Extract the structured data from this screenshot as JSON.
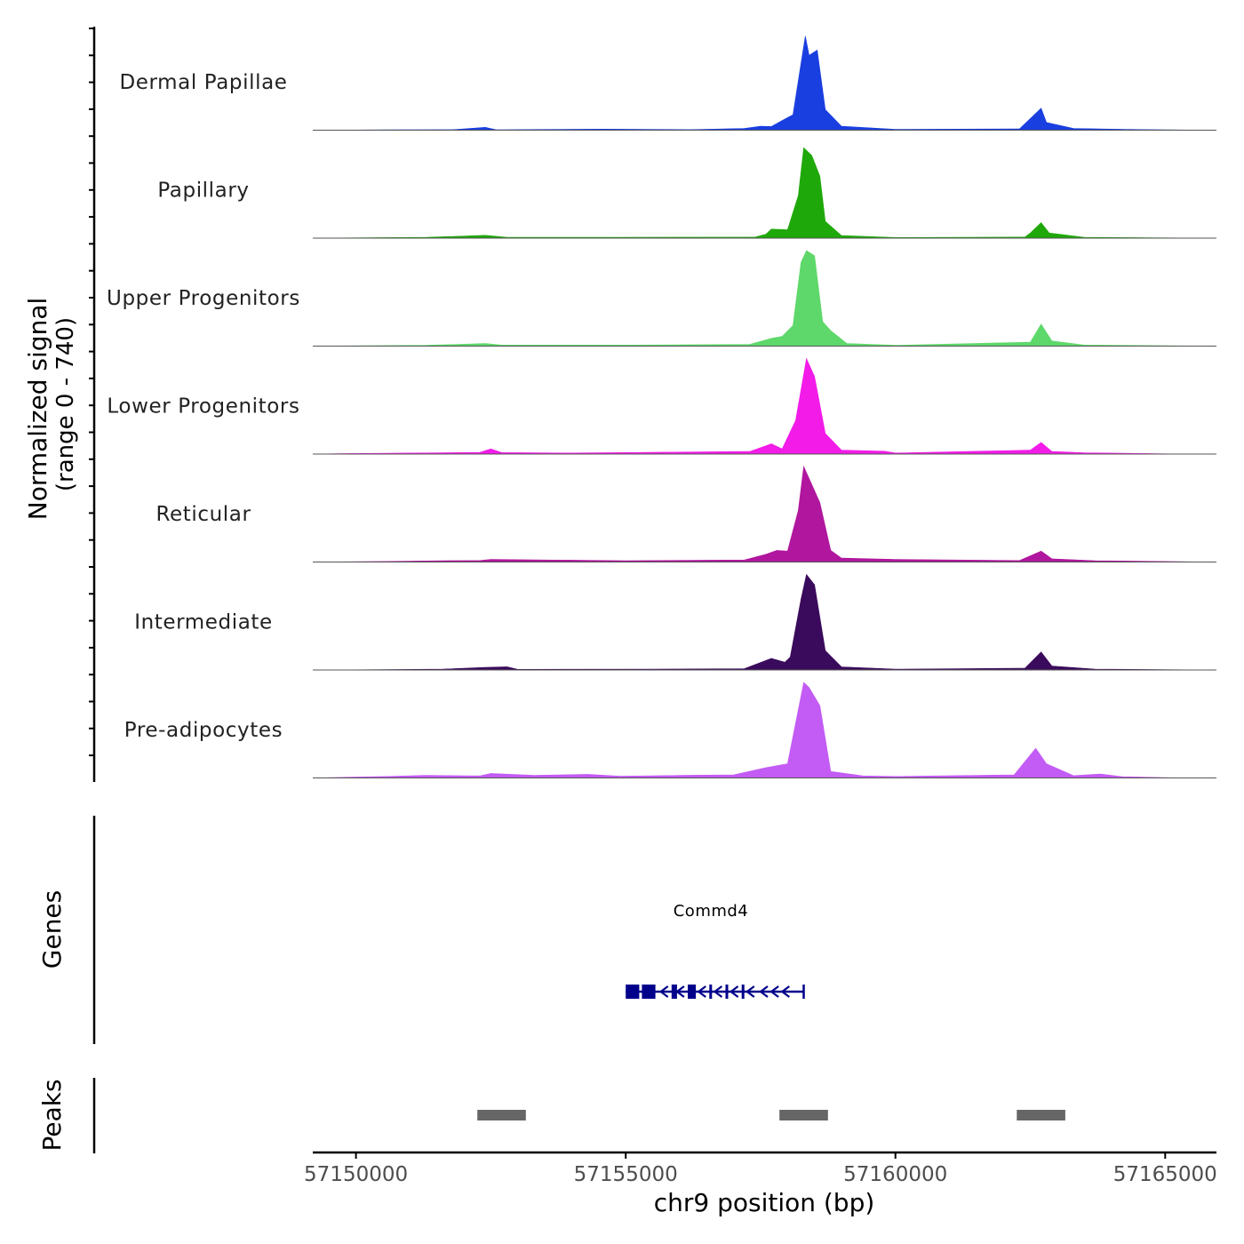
{
  "chart_data": [
    {
      "type": "area",
      "title": "",
      "ylabel_line1": "Normalized signal",
      "ylabel_line2": "(range 0 - 740)",
      "ylim": [
        0,
        740
      ],
      "xlim": [
        57149200,
        57165950
      ],
      "colors": [
        "#1A3FE0",
        "#1FA80A",
        "#5ED86A",
        "#F21BE8",
        "#B0169E",
        "#3A0A5C",
        "#C35BF5"
      ],
      "peak_scale": [
        1.0,
        1.0,
        1.0,
        0.9,
        0.72,
        0.78,
        0.8
      ],
      "shoulder_scale": [
        0.28,
        0.12,
        0.35,
        0.15,
        0.22,
        0.3,
        0.5
      ],
      "series": [
        {
          "name": "Dermal Papillae",
          "values": [
            [
              57149200,
              0
            ],
            [
              57150600,
              3
            ],
            [
              57151800,
              4
            ],
            [
              57152400,
              22
            ],
            [
              57152600,
              3
            ],
            [
              57154600,
              8
            ],
            [
              57156200,
              4
            ],
            [
              57157200,
              14
            ],
            [
              57157500,
              30
            ],
            [
              57157700,
              28
            ],
            [
              57157900,
              75
            ],
            [
              57158100,
              120
            ],
            [
              57158250,
              520
            ],
            [
              57158330,
              730
            ],
            [
              57158400,
              580
            ],
            [
              57158550,
              620
            ],
            [
              57158700,
              160
            ],
            [
              57159000,
              30
            ],
            [
              57160000,
              6
            ],
            [
              57162300,
              10
            ],
            [
              57162700,
              170
            ],
            [
              57162800,
              60
            ],
            [
              57163300,
              14
            ],
            [
              57164500,
              5
            ],
            [
              57165900,
              0
            ]
          ]
        },
        {
          "name": "Papillary",
          "values": [
            [
              57149200,
              0
            ],
            [
              57151300,
              6
            ],
            [
              57152400,
              22
            ],
            [
              57152800,
              6
            ],
            [
              57154600,
              6
            ],
            [
              57157400,
              8
            ],
            [
              57157600,
              30
            ],
            [
              57157700,
              70
            ],
            [
              57158000,
              65
            ],
            [
              57158200,
              330
            ],
            [
              57158300,
              700
            ],
            [
              57158450,
              640
            ],
            [
              57158600,
              480
            ],
            [
              57158700,
              130
            ],
            [
              57159000,
              20
            ],
            [
              57160000,
              5
            ],
            [
              57162400,
              8
            ],
            [
              57162500,
              40
            ],
            [
              57162700,
              120
            ],
            [
              57162850,
              40
            ],
            [
              57163500,
              6
            ],
            [
              57165900,
              0
            ]
          ]
        },
        {
          "name": "Upper Progenitors",
          "values": [
            [
              57149200,
              0
            ],
            [
              57151300,
              6
            ],
            [
              57152400,
              20
            ],
            [
              57152700,
              8
            ],
            [
              57155200,
              8
            ],
            [
              57157300,
              14
            ],
            [
              57157700,
              60
            ],
            [
              57157900,
              75
            ],
            [
              57158100,
              160
            ],
            [
              57158250,
              650
            ],
            [
              57158350,
              740
            ],
            [
              57158500,
              700
            ],
            [
              57158650,
              190
            ],
            [
              57158800,
              120
            ],
            [
              57159100,
              20
            ],
            [
              57160000,
              6
            ],
            [
              57162500,
              30
            ],
            [
              57162700,
              170
            ],
            [
              57162900,
              40
            ],
            [
              57163500,
              8
            ],
            [
              57165900,
              0
            ]
          ]
        },
        {
          "name": "Lower Progenitors",
          "values": [
            [
              57149200,
              0
            ],
            [
              57149900,
              4
            ],
            [
              57151600,
              10
            ],
            [
              57152300,
              14
            ],
            [
              57152500,
              40
            ],
            [
              57152700,
              12
            ],
            [
              57154000,
              8
            ],
            [
              57157300,
              20
            ],
            [
              57157700,
              80
            ],
            [
              57157900,
              40
            ],
            [
              57158150,
              260
            ],
            [
              57158350,
              740
            ],
            [
              57158500,
              600
            ],
            [
              57158700,
              160
            ],
            [
              57159000,
              30
            ],
            [
              57159800,
              22
            ],
            [
              57160000,
              8
            ],
            [
              57162500,
              30
            ],
            [
              57162700,
              90
            ],
            [
              57162900,
              20
            ],
            [
              57163500,
              10
            ],
            [
              57165400,
              0
            ],
            [
              57165900,
              0
            ]
          ]
        },
        {
          "name": "Reticular",
          "values": [
            [
              57149200,
              0
            ],
            [
              57150500,
              4
            ],
            [
              57151600,
              10
            ],
            [
              57152300,
              12
            ],
            [
              57152500,
              20
            ],
            [
              57155000,
              10
            ],
            [
              57157200,
              16
            ],
            [
              57157600,
              60
            ],
            [
              57157800,
              90
            ],
            [
              57158000,
              85
            ],
            [
              57158200,
              400
            ],
            [
              57158300,
              740
            ],
            [
              57158450,
              600
            ],
            [
              57158600,
              460
            ],
            [
              57158800,
              90
            ],
            [
              57159000,
              30
            ],
            [
              57160000,
              20
            ],
            [
              57162300,
              12
            ],
            [
              57162700,
              85
            ],
            [
              57162900,
              25
            ],
            [
              57163700,
              10
            ],
            [
              57165900,
              0
            ]
          ]
        },
        {
          "name": "Intermediate",
          "values": [
            [
              57149200,
              0
            ],
            [
              57150600,
              3
            ],
            [
              57151600,
              6
            ],
            [
              57152400,
              20
            ],
            [
              57152800,
              25
            ],
            [
              57153000,
              5
            ],
            [
              57155500,
              6
            ],
            [
              57157200,
              10
            ],
            [
              57157700,
              90
            ],
            [
              57157950,
              60
            ],
            [
              57158050,
              100
            ],
            [
              57158250,
              550
            ],
            [
              57158350,
              740
            ],
            [
              57158500,
              660
            ],
            [
              57158700,
              150
            ],
            [
              57159000,
              24
            ],
            [
              57160000,
              6
            ],
            [
              57162400,
              14
            ],
            [
              57162700,
              140
            ],
            [
              57162900,
              30
            ],
            [
              57163700,
              6
            ],
            [
              57165900,
              0
            ]
          ]
        },
        {
          "name": "Pre-adipocytes",
          "values": [
            [
              57149200,
              0
            ],
            [
              57149900,
              6
            ],
            [
              57150600,
              12
            ],
            [
              57151300,
              20
            ],
            [
              57152300,
              16
            ],
            [
              57152500,
              35
            ],
            [
              57153300,
              20
            ],
            [
              57154300,
              28
            ],
            [
              57154900,
              14
            ],
            [
              57156000,
              20
            ],
            [
              57157000,
              24
            ],
            [
              57157600,
              80
            ],
            [
              57158000,
              110
            ],
            [
              57158300,
              740
            ],
            [
              57158400,
              700
            ],
            [
              57158600,
              560
            ],
            [
              57158800,
              50
            ],
            [
              57159400,
              16
            ],
            [
              57160000,
              12
            ],
            [
              57162200,
              24
            ],
            [
              57162600,
              230
            ],
            [
              57162800,
              110
            ],
            [
              57163300,
              18
            ],
            [
              57163800,
              30
            ],
            [
              57164200,
              10
            ],
            [
              57165300,
              0
            ],
            [
              57165900,
              0
            ]
          ]
        }
      ]
    },
    {
      "type": "gene-track",
      "ylabel": "Genes",
      "genes": [
        {
          "name": "Commd4",
          "start": 57155000,
          "end": 57158300,
          "strand": "-",
          "exons": [
            [
              57155000,
              57155250
            ],
            [
              57155300,
              57155550
            ],
            [
              57155850,
              57155950
            ],
            [
              57156150,
              57156300
            ],
            [
              57156550,
              57156600
            ],
            [
              57156850,
              57156900
            ],
            [
              57157150,
              57157200
            ]
          ],
          "arrows": [
            57155700,
            57156000,
            57156400,
            57156700,
            57157000,
            57157300,
            57157550,
            57157750,
            57157950
          ]
        }
      ]
    },
    {
      "type": "interval-track",
      "ylabel": "Peaks",
      "intervals": [
        [
          57152250,
          57153150
        ],
        [
          57157850,
          57158750
        ],
        [
          57162250,
          57163150
        ]
      ],
      "xlabel": "chr9 position (bp)",
      "xticks": [
        57150000,
        57155000,
        57160000,
        57165000
      ],
      "xtick_labels": [
        "57150000",
        "57155000",
        "57160000",
        "57165000"
      ],
      "gene_color": "#00008B",
      "peak_color": "#666666"
    }
  ]
}
